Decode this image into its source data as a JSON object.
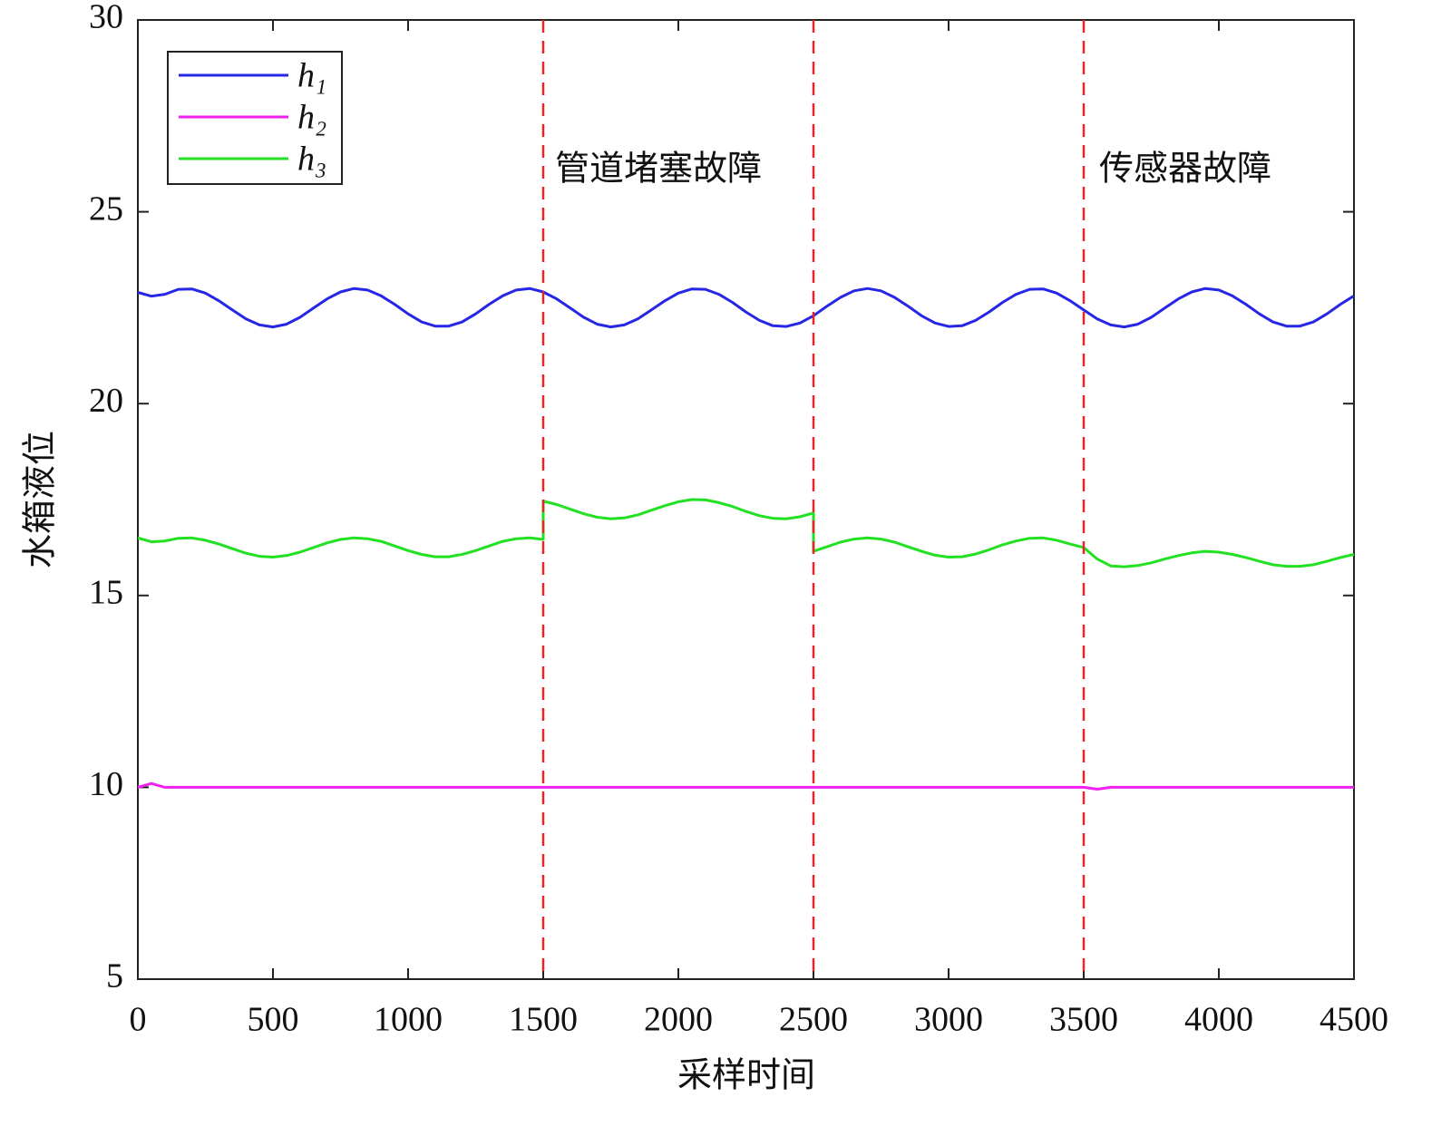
{
  "chart_data": {
    "type": "line",
    "xlabel": "采样时间",
    "ylabel": "水箱液位",
    "xlim": [
      0,
      4500
    ],
    "xticks": [
      0,
      500,
      1000,
      1500,
      2000,
      2500,
      3000,
      3500,
      4000,
      4500
    ],
    "ylim": [
      5,
      30
    ],
    "yticks": [
      5,
      10,
      15,
      20,
      25,
      30
    ],
    "legend": "upper left",
    "vlines": [
      1500,
      2500,
      3500
    ],
    "vline_color": "#e8242b",
    "annotations": [
      "管道堵塞故障",
      "传感器故障"
    ],
    "x": [
      0,
      50,
      100,
      150,
      200,
      250,
      300,
      350,
      400,
      450,
      500,
      550,
      600,
      650,
      700,
      750,
      800,
      850,
      900,
      950,
      1000,
      1050,
      1100,
      1150,
      1200,
      1250,
      1300,
      1350,
      1400,
      1450,
      1500,
      1500,
      1550,
      1600,
      1650,
      1700,
      1750,
      1800,
      1850,
      1900,
      1950,
      2000,
      2050,
      2100,
      2150,
      2200,
      2250,
      2300,
      2350,
      2400,
      2450,
      2500,
      2500,
      2550,
      2600,
      2650,
      2700,
      2750,
      2800,
      2850,
      2900,
      2950,
      3000,
      3050,
      3100,
      3150,
      3200,
      3250,
      3300,
      3350,
      3400,
      3450,
      3500,
      3550,
      3600,
      3650,
      3700,
      3750,
      3800,
      3850,
      3900,
      3950,
      4000,
      4050,
      4100,
      4150,
      4200,
      4250,
      4300,
      4350,
      4400,
      4450,
      4500
    ],
    "series": [
      {
        "name": "h₁",
        "color": "#2626e6",
        "values": [
          22.9,
          22.8,
          22.85,
          22.98,
          22.99,
          22.88,
          22.68,
          22.44,
          22.21,
          22.05,
          22.0,
          22.07,
          22.25,
          22.49,
          22.73,
          22.91,
          23.0,
          22.96,
          22.81,
          22.59,
          22.34,
          22.13,
          22.02,
          22.02,
          22.13,
          22.34,
          22.59,
          22.81,
          22.96,
          23.0,
          22.91,
          22.91,
          22.73,
          22.49,
          22.25,
          22.07,
          22.0,
          22.05,
          22.21,
          22.44,
          22.68,
          22.88,
          22.99,
          22.98,
          22.85,
          22.64,
          22.39,
          22.17,
          22.03,
          22.01,
          22.1,
          22.29,
          22.29,
          22.54,
          22.77,
          22.94,
          23.0,
          22.94,
          22.77,
          22.54,
          22.29,
          22.1,
          22.01,
          22.03,
          22.17,
          22.39,
          22.64,
          22.85,
          22.98,
          22.99,
          22.88,
          22.68,
          22.44,
          22.21,
          22.05,
          22.0,
          22.07,
          22.25,
          22.49,
          22.73,
          22.91,
          23.0,
          22.96,
          22.81,
          22.59,
          22.34,
          22.13,
          22.02,
          22.02,
          22.13,
          22.34,
          22.59,
          22.81
        ]
      },
      {
        "name": "h₂",
        "color": "#f020f0",
        "values": [
          10,
          10.1,
          10,
          10,
          10,
          10,
          10,
          10,
          10,
          10,
          10,
          10,
          10,
          10,
          10,
          10,
          10,
          10,
          10,
          10,
          10,
          10,
          10,
          10,
          10,
          10,
          10,
          10,
          10,
          10,
          10,
          10,
          10,
          10,
          10,
          10,
          10,
          10,
          10,
          10,
          10,
          10,
          10,
          10,
          10,
          10,
          10,
          10,
          10,
          10,
          10,
          10,
          10,
          10,
          10,
          10,
          10,
          10,
          10,
          10,
          10,
          10,
          10,
          10,
          10,
          10,
          10,
          10,
          10,
          10,
          10,
          10,
          10,
          9.95,
          10,
          10,
          10,
          10,
          10,
          10,
          10,
          10,
          10,
          10,
          10,
          10,
          10,
          10,
          10,
          10,
          10,
          10,
          10
        ]
      },
      {
        "name": "h₃",
        "color": "#22e022",
        "values": [
          16.5,
          16.4,
          16.42,
          16.49,
          16.5,
          16.44,
          16.34,
          16.22,
          16.1,
          16.02,
          16.0,
          16.04,
          16.13,
          16.25,
          16.37,
          16.46,
          16.5,
          16.48,
          16.41,
          16.29,
          16.17,
          16.07,
          16.01,
          16.01,
          16.07,
          16.17,
          16.29,
          16.41,
          16.48,
          16.5,
          16.46,
          17.46,
          17.37,
          17.25,
          17.13,
          17.04,
          17.0,
          17.02,
          17.1,
          17.22,
          17.34,
          17.44,
          17.5,
          17.49,
          17.42,
          17.32,
          17.19,
          17.08,
          17.01,
          17.0,
          17.05,
          17.15,
          16.15,
          16.27,
          16.39,
          16.47,
          16.5,
          16.47,
          16.39,
          16.27,
          16.15,
          16.05,
          16.0,
          16.01,
          16.08,
          16.19,
          16.32,
          16.42,
          16.49,
          16.5,
          16.44,
          16.34,
          16.25,
          15.95,
          15.77,
          15.75,
          15.78,
          15.85,
          15.95,
          16.04,
          16.11,
          16.15,
          16.13,
          16.07,
          15.99,
          15.89,
          15.8,
          15.76,
          15.76,
          15.8,
          15.89,
          15.99,
          16.07
        ]
      }
    ]
  }
}
